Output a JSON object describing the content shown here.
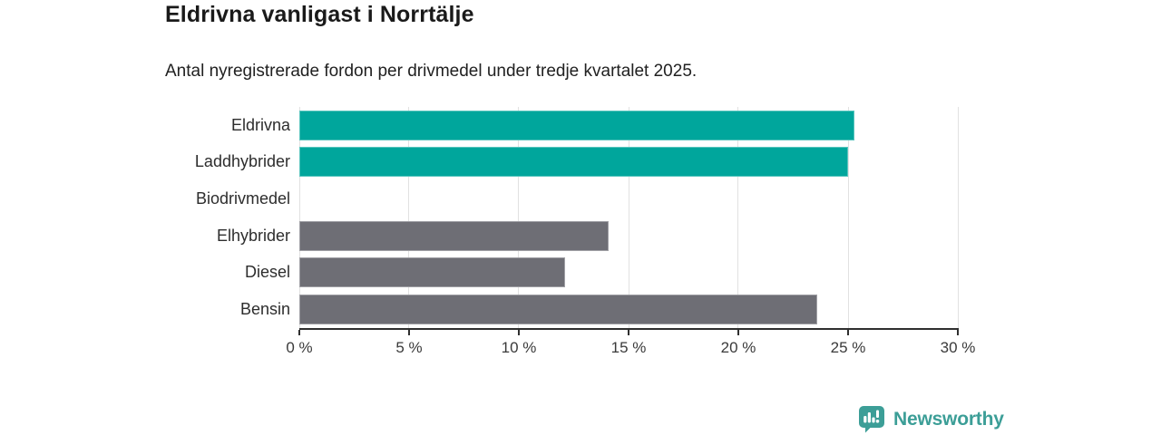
{
  "header": {
    "title": "Eldrivna vanligast i Norrtälje",
    "subtitle": "Antal nyregistrerade fordon per drivmedel under tredje kvartalet 2025."
  },
  "chart_data": {
    "type": "bar",
    "orientation": "horizontal",
    "title": "Eldrivna vanligast i Norrtälje",
    "subtitle": "Antal nyregistrerade fordon per drivmedel under tredje kvartalet 2025.",
    "categories": [
      "Eldrivna",
      "Laddhybrider",
      "Biodrivmedel",
      "Elhybrider",
      "Diesel",
      "Bensin"
    ],
    "values": [
      25.3,
      25.0,
      0,
      14.1,
      12.1,
      23.6
    ],
    "bar_colors": [
      "#00a69c",
      "#00a69c",
      "#6e6e75",
      "#6e6e75",
      "#6e6e75",
      "#6e6e75"
    ],
    "xlabel": "",
    "ylabel": "",
    "xlim": [
      0,
      30
    ],
    "x_ticks": [
      "0 %",
      "5 %",
      "10 %",
      "15 %",
      "20 %",
      "25 %",
      "30 %"
    ],
    "grid": "vertical",
    "legend": "none",
    "accent_color": "#00a69c",
    "neutral_color": "#6e6e75",
    "gridline_color": "#e1e1e1",
    "axis_color": "#2f2f2f"
  },
  "branding": {
    "logo_text": "Newsworthy",
    "logo_color": "#3c9e97",
    "logo_icon": "bar-chart-speech-bubble-icon"
  }
}
